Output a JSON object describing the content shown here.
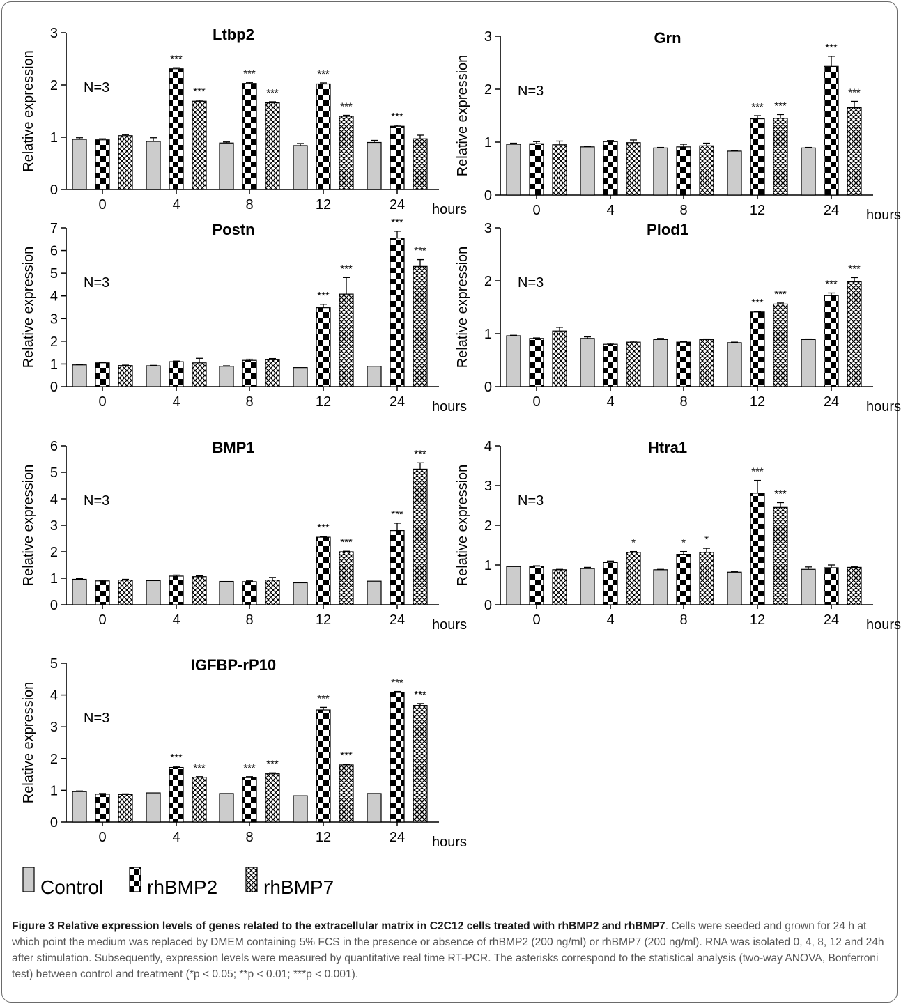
{
  "figure": {
    "n_label": "N=3",
    "hours_label": "hours",
    "ylabel": "Relative expression",
    "colors": {
      "control": "#cccccc",
      "edge": "#000000",
      "text": "#000000"
    }
  },
  "legend": [
    {
      "label": "Control",
      "pattern": "solid-gray"
    },
    {
      "label": "rhBMP2",
      "pattern": "checkerboard"
    },
    {
      "label": "rhBMP7",
      "pattern": "crosshatch"
    }
  ],
  "caption": {
    "label": "Figure 3",
    "title": "Relative expression levels of genes related to the extracellular matrix in C2C12 cells treated with rhBMP2 and rhBMP7",
    "body": ". Cells were seeded and grown for 24 h at which point the medium was replaced by DMEM containing 5% FCS in the presence or absence of rhBMP2 (200 ng/ml) or rhBMP7 (200 ng/ml). RNA was isolated 0, 4, 8, 12 and 24h after stimulation. Subsequently, expression levels were measured by quantitative real time RT-PCR. The asterisks correspond to the statistical analysis (two-way ANOVA, Bonferroni test) between control and treatment (*p < 0.05; **p < 0.01; ***p < 0.001)."
  },
  "chart_data": [
    {
      "type": "bar",
      "title": "Ltbp2",
      "xlabel": "hours",
      "ylabel": "Relative expression",
      "categories": [
        "0",
        "4",
        "8",
        "12",
        "24"
      ],
      "ylim": [
        0,
        3
      ],
      "yticks": [
        0,
        1,
        2,
        3
      ],
      "series": [
        {
          "name": "Control",
          "values": [
            0.96,
            0.92,
            0.89,
            0.84,
            0.9
          ],
          "errors": [
            0.03,
            0.07,
            0.02,
            0.04,
            0.04
          ],
          "sig": [
            "",
            "",
            "",
            "",
            ""
          ]
        },
        {
          "name": "rhBMP2",
          "values": [
            0.95,
            2.31,
            2.03,
            2.02,
            1.21
          ],
          "errors": [
            0.02,
            0.02,
            0.02,
            0.02,
            0.02
          ],
          "sig": [
            "",
            "***",
            "***",
            "***",
            "***"
          ]
        },
        {
          "name": "rhBMP7",
          "values": [
            1.03,
            1.69,
            1.66,
            1.4,
            0.97
          ],
          "errors": [
            0.02,
            0.02,
            0.02,
            0.02,
            0.07
          ],
          "sig": [
            "",
            "***",
            "***",
            "***",
            ""
          ]
        }
      ]
    },
    {
      "type": "bar",
      "title": "Grn",
      "xlabel": "hours",
      "ylabel": "Relative expression",
      "categories": [
        "0",
        "4",
        "8",
        "12",
        "24"
      ],
      "ylim": [
        0,
        3
      ],
      "yticks": [
        0,
        1,
        2,
        3
      ],
      "series": [
        {
          "name": "Control",
          "values": [
            0.96,
            0.91,
            0.89,
            0.83,
            0.89
          ],
          "errors": [
            0.02,
            0.01,
            0.01,
            0.01,
            0.01
          ],
          "sig": [
            "",
            "",
            "",
            "",
            ""
          ]
        },
        {
          "name": "rhBMP2",
          "values": [
            0.97,
            1.01,
            0.91,
            1.44,
            2.43
          ],
          "errors": [
            0.04,
            0.02,
            0.05,
            0.06,
            0.19
          ],
          "sig": [
            "",
            "",
            "",
            "***",
            "***"
          ]
        },
        {
          "name": "rhBMP7",
          "values": [
            0.95,
            0.99,
            0.93,
            1.45,
            1.65
          ],
          "errors": [
            0.07,
            0.05,
            0.05,
            0.07,
            0.12
          ],
          "sig": [
            "",
            "",
            "",
            "***",
            "***"
          ]
        }
      ]
    },
    {
      "type": "bar",
      "title": "Postn",
      "xlabel": "hours",
      "ylabel": "Relative expression",
      "categories": [
        "0",
        "4",
        "8",
        "12",
        "24"
      ],
      "ylim": [
        0,
        7
      ],
      "yticks": [
        0,
        1,
        2,
        3,
        4,
        5,
        6,
        7
      ],
      "series": [
        {
          "name": "Control",
          "values": [
            0.96,
            0.92,
            0.9,
            0.84,
            0.9
          ],
          "errors": [
            0.02,
            0.02,
            0.02,
            0.01,
            0.01
          ],
          "sig": [
            "",
            "",
            "",
            "",
            ""
          ]
        },
        {
          "name": "rhBMP2",
          "values": [
            1.05,
            1.1,
            1.16,
            3.48,
            6.55
          ],
          "errors": [
            0.03,
            0.03,
            0.05,
            0.15,
            0.3
          ],
          "sig": [
            "",
            "",
            "",
            "***",
            "***"
          ]
        },
        {
          "name": "rhBMP7",
          "values": [
            0.93,
            1.05,
            1.19,
            4.08,
            5.3
          ],
          "errors": [
            0.02,
            0.2,
            0.05,
            0.73,
            0.3
          ],
          "sig": [
            "",
            "",
            "",
            "***",
            "***"
          ]
        }
      ]
    },
    {
      "type": "bar",
      "title": "Plod1",
      "xlabel": "hours",
      "ylabel": "Relative expression",
      "categories": [
        "0",
        "4",
        "8",
        "12",
        "24"
      ],
      "ylim": [
        0,
        3
      ],
      "yticks": [
        0,
        1,
        2,
        3
      ],
      "series": [
        {
          "name": "Control",
          "values": [
            0.96,
            0.91,
            0.89,
            0.83,
            0.89
          ],
          "errors": [
            0.01,
            0.03,
            0.02,
            0.01,
            0.01
          ],
          "sig": [
            "",
            "",
            "",
            "",
            ""
          ]
        },
        {
          "name": "rhBMP2",
          "values": [
            0.91,
            0.8,
            0.84,
            1.41,
            1.72
          ],
          "errors": [
            0.01,
            0.02,
            0.01,
            0.01,
            0.05
          ],
          "sig": [
            "",
            "",
            "",
            "***",
            "***"
          ]
        },
        {
          "name": "rhBMP7",
          "values": [
            1.05,
            0.84,
            0.89,
            1.56,
            1.98
          ],
          "errors": [
            0.07,
            0.02,
            0.01,
            0.02,
            0.08
          ],
          "sig": [
            "",
            "",
            "",
            "***",
            "***"
          ]
        }
      ]
    },
    {
      "type": "bar",
      "title": "BMP1",
      "xlabel": "hours",
      "ylabel": "Relative expression",
      "categories": [
        "0",
        "4",
        "8",
        "12",
        "24"
      ],
      "ylim": [
        0,
        6
      ],
      "yticks": [
        0,
        1,
        2,
        3,
        4,
        5,
        6
      ],
      "series": [
        {
          "name": "Control",
          "values": [
            0.96,
            0.91,
            0.88,
            0.83,
            0.89
          ],
          "errors": [
            0.03,
            0.02,
            0.01,
            0.01,
            0.01
          ],
          "sig": [
            "",
            "",
            "",
            "",
            ""
          ]
        },
        {
          "name": "rhBMP2",
          "values": [
            0.9,
            1.08,
            0.87,
            2.55,
            2.8
          ],
          "errors": [
            0.03,
            0.04,
            0.03,
            0.03,
            0.28
          ],
          "sig": [
            "",
            "",
            "",
            "***",
            "***"
          ]
        },
        {
          "name": "rhBMP7",
          "values": [
            0.93,
            1.06,
            0.93,
            2.0,
            5.12
          ],
          "errors": [
            0.03,
            0.03,
            0.1,
            0.02,
            0.24
          ],
          "sig": [
            "",
            "",
            "",
            "***",
            "***"
          ]
        }
      ]
    },
    {
      "type": "bar",
      "title": "Htra1",
      "xlabel": "hours",
      "ylabel": "Relative expression",
      "categories": [
        "0",
        "4",
        "8",
        "12",
        "24"
      ],
      "ylim": [
        0,
        4
      ],
      "yticks": [
        0,
        1,
        2,
        3,
        4
      ],
      "series": [
        {
          "name": "Control",
          "values": [
            0.96,
            0.91,
            0.88,
            0.82,
            0.89
          ],
          "errors": [
            0.01,
            0.03,
            0.01,
            0.01,
            0.06
          ],
          "sig": [
            "",
            "",
            "",
            "",
            ""
          ]
        },
        {
          "name": "rhBMP2",
          "values": [
            0.97,
            1.07,
            1.27,
            2.81,
            0.93
          ],
          "errors": [
            0.01,
            0.03,
            0.07,
            0.32,
            0.07
          ],
          "sig": [
            "",
            "",
            "*",
            "***",
            ""
          ]
        },
        {
          "name": "rhBMP7",
          "values": [
            0.88,
            1.32,
            1.32,
            2.45,
            0.94
          ],
          "errors": [
            0.01,
            0.02,
            0.1,
            0.12,
            0.02
          ],
          "sig": [
            "",
            "*",
            "*",
            "***",
            ""
          ]
        }
      ]
    },
    {
      "type": "bar",
      "title": "IGFBP-rP10",
      "xlabel": "hours",
      "ylabel": "Relative expression",
      "categories": [
        "0",
        "4",
        "8",
        "12",
        "24"
      ],
      "ylim": [
        0,
        5
      ],
      "yticks": [
        0,
        1,
        2,
        3,
        4,
        5
      ],
      "series": [
        {
          "name": "Control",
          "values": [
            0.96,
            0.92,
            0.9,
            0.83,
            0.9
          ],
          "errors": [
            0.02,
            0.01,
            0.01,
            0.01,
            0.01
          ],
          "sig": [
            "",
            "",
            "",
            "",
            ""
          ]
        },
        {
          "name": "rhBMP2",
          "values": [
            0.88,
            1.72,
            1.4,
            3.53,
            4.08
          ],
          "errors": [
            0.02,
            0.03,
            0.03,
            0.08,
            0.03
          ],
          "sig": [
            "",
            "***",
            "***",
            "***",
            "***"
          ]
        },
        {
          "name": "rhBMP7",
          "values": [
            0.87,
            1.41,
            1.52,
            1.8,
            3.67
          ],
          "errors": [
            0.02,
            0.02,
            0.03,
            0.02,
            0.06
          ],
          "sig": [
            "",
            "***",
            "***",
            "***",
            "***"
          ]
        }
      ]
    }
  ]
}
